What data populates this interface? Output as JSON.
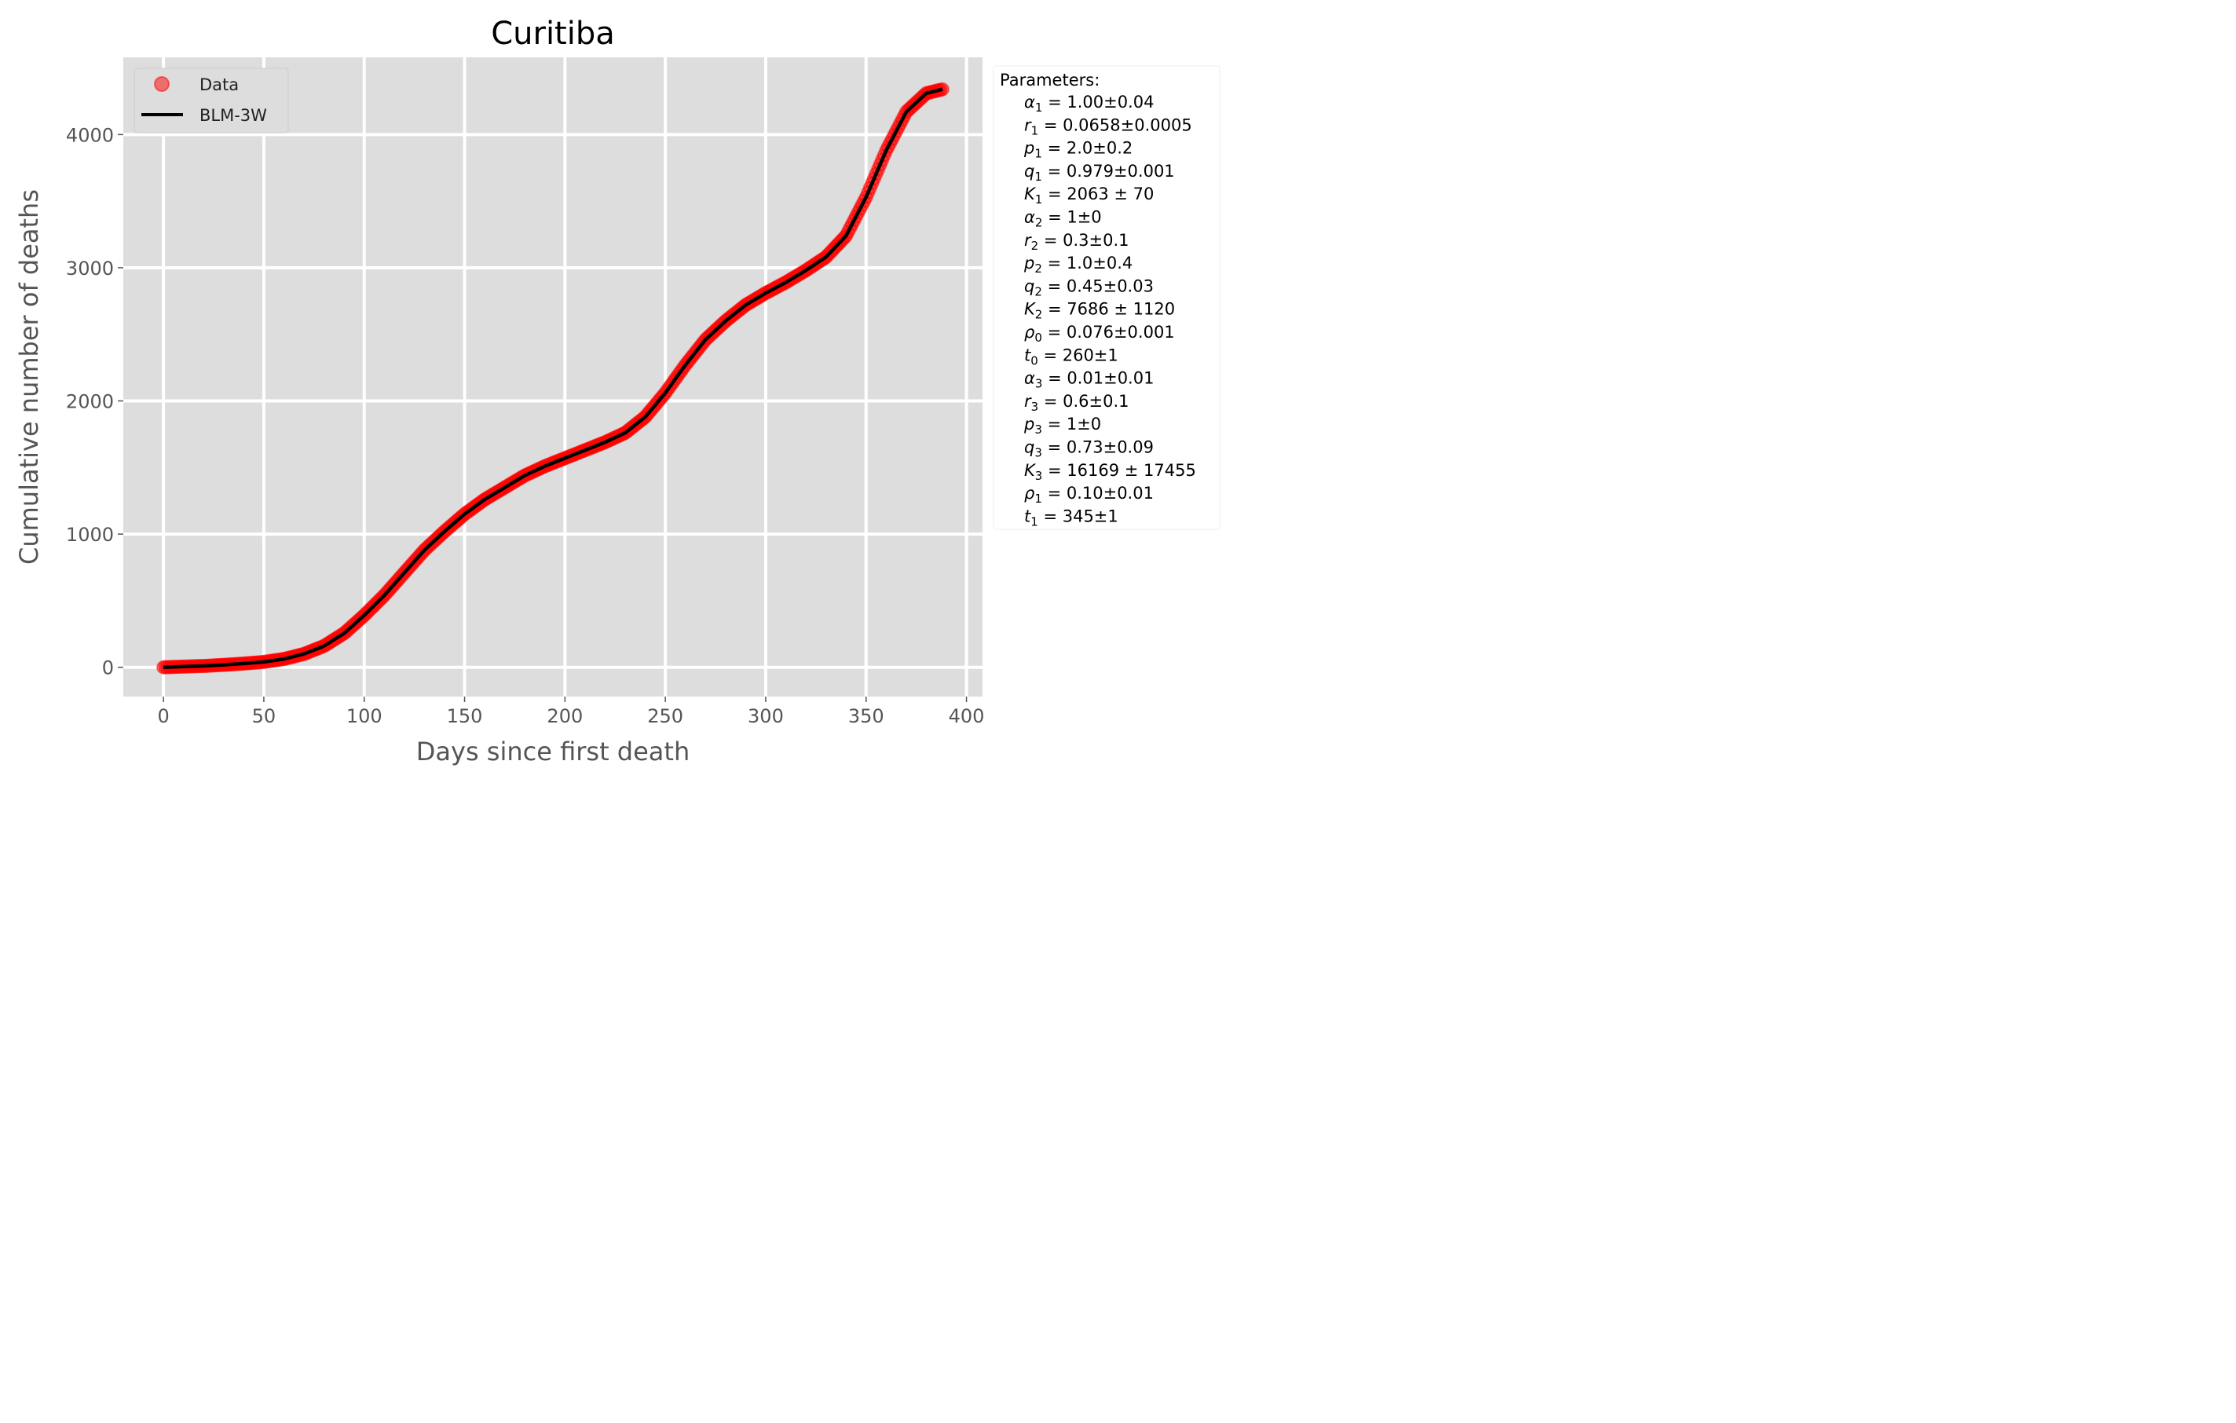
{
  "chart_data": {
    "type": "line",
    "title": "Curitiba",
    "xlabel": "Days since first death",
    "ylabel": "Cumulative number of deaths",
    "xlim": [
      -20,
      408
    ],
    "ylim": [
      -220,
      4580
    ],
    "xticks": [
      0,
      50,
      100,
      150,
      200,
      250,
      300,
      350,
      400
    ],
    "yticks": [
      0,
      1000,
      2000,
      3000,
      4000
    ],
    "grid": true,
    "legend_position": "top-left",
    "series": [
      {
        "name": "Data",
        "kind": "scatter",
        "color": "#ff0000",
        "x": [
          0,
          10,
          20,
          30,
          40,
          50,
          60,
          70,
          80,
          90,
          100,
          110,
          120,
          130,
          140,
          150,
          160,
          170,
          180,
          190,
          200,
          210,
          220,
          230,
          240,
          250,
          260,
          270,
          280,
          290,
          300,
          310,
          320,
          330,
          340,
          350,
          360,
          370,
          380,
          388
        ],
        "y": [
          0,
          5,
          10,
          18,
          28,
          40,
          62,
          100,
          160,
          255,
          390,
          540,
          710,
          880,
          1020,
          1150,
          1260,
          1350,
          1440,
          1510,
          1570,
          1630,
          1690,
          1760,
          1880,
          2060,
          2270,
          2460,
          2600,
          2720,
          2810,
          2890,
          2980,
          3080,
          3240,
          3530,
          3880,
          4170,
          4310,
          4340
        ]
      },
      {
        "name": "BLM-3W",
        "kind": "line",
        "color": "#000000",
        "x": [
          0,
          10,
          20,
          30,
          40,
          50,
          60,
          70,
          80,
          90,
          100,
          110,
          120,
          130,
          140,
          150,
          160,
          170,
          180,
          190,
          200,
          210,
          220,
          230,
          240,
          250,
          260,
          270,
          280,
          290,
          300,
          310,
          320,
          330,
          340,
          350,
          360,
          370,
          380,
          388
        ],
        "y": [
          0,
          5,
          10,
          18,
          28,
          40,
          62,
          100,
          160,
          255,
          390,
          540,
          710,
          880,
          1020,
          1150,
          1260,
          1350,
          1440,
          1510,
          1570,
          1630,
          1690,
          1760,
          1880,
          2060,
          2270,
          2460,
          2600,
          2720,
          2810,
          2890,
          2980,
          3080,
          3240,
          3530,
          3880,
          4170,
          4310,
          4340
        ]
      }
    ],
    "parameters": {
      "heading": "Parameters:",
      "items": [
        {
          "sym": "α",
          "sub": "1",
          "value": "1.00±0.04"
        },
        {
          "sym": "r",
          "sub": "1",
          "value": "0.0658±0.0005"
        },
        {
          "sym": "p",
          "sub": "1",
          "value": "2.0±0.2"
        },
        {
          "sym": "q",
          "sub": "1",
          "value": "0.979±0.001"
        },
        {
          "sym": "K",
          "sub": "1",
          "value": "2063 ± 70"
        },
        {
          "sym": "α",
          "sub": "2",
          "value": "1±0"
        },
        {
          "sym": "r",
          "sub": "2",
          "value": "0.3±0.1"
        },
        {
          "sym": "p",
          "sub": "2",
          "value": "1.0±0.4"
        },
        {
          "sym": "q",
          "sub": "2",
          "value": "0.45±0.03"
        },
        {
          "sym": "K",
          "sub": "2",
          "value": "7686 ± 1120"
        },
        {
          "sym": "ρ",
          "sub": "0",
          "value": "0.076±0.001"
        },
        {
          "sym": "t",
          "sub": "0",
          "value": "260±1"
        },
        {
          "sym": "α",
          "sub": "3",
          "value": "0.01±0.01"
        },
        {
          "sym": "r",
          "sub": "3",
          "value": "0.6±0.1"
        },
        {
          "sym": "p",
          "sub": "3",
          "value": "1±0"
        },
        {
          "sym": "q",
          "sub": "3",
          "value": "0.73±0.09"
        },
        {
          "sym": "K",
          "sub": "3",
          "value": "16169 ± 17455"
        },
        {
          "sym": "ρ",
          "sub": "1",
          "value": "0.10±0.01"
        },
        {
          "sym": "t",
          "sub": "1",
          "value": "345±1"
        }
      ]
    }
  },
  "colors": {
    "plot_background": "#dddddd",
    "grid": "#ffffff",
    "data_marker": "#ff0000",
    "fit_line": "#000000"
  }
}
